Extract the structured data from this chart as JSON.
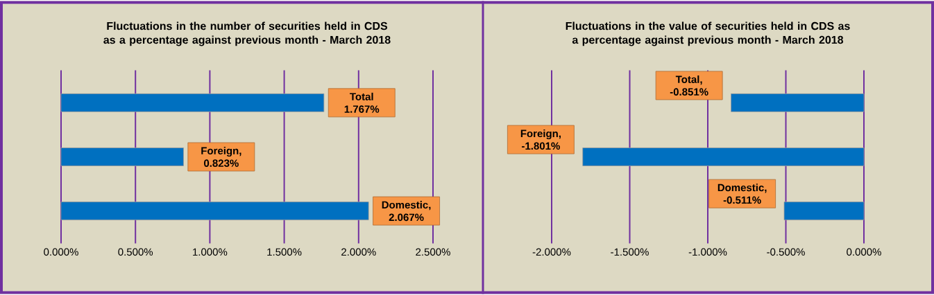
{
  "chart_data": [
    {
      "type": "bar",
      "orientation": "horizontal",
      "title": "Fluctuations in the number of securities held in CDS as a percentage against previous month - March 2018",
      "categories": [
        null,
        null,
        null
      ],
      "values": [
        1.767,
        0.823,
        2.067
      ],
      "value_labels": [
        "Total 1.767%",
        "Foreign, 0.823%",
        "Domestic, 2.067%"
      ],
      "color": "#0070c0",
      "xlim": [
        0,
        2.5
      ],
      "xticks": [
        {
          "value": 0,
          "label": "0.000%"
        },
        {
          "value": 0.5,
          "label": "0.500%"
        },
        {
          "value": 1,
          "label": "1.000%"
        },
        {
          "value": 1.5,
          "label": "1.500%"
        },
        {
          "value": 2,
          "label": "2.000%"
        },
        {
          "value": 2.5,
          "label": "2.500%"
        }
      ],
      "grid": "x",
      "tick_labels": "x"
    },
    {
      "type": "bar",
      "orientation": "horizontal",
      "title": "Fluctuations in the value of securities held in CDS as a percentage against previous month - March 2018",
      "categories": [
        null,
        null,
        null
      ],
      "values": [
        -0.851,
        -1.801,
        -0.511
      ],
      "value_labels": [
        "Total, -0.851%",
        "Foreign, -1.801%",
        "Domestic, -0.511%"
      ],
      "color": "#0070c0",
      "xlim": [
        -2,
        0
      ],
      "xticks": [
        {
          "value": -2,
          "label": "-2.000%"
        },
        {
          "value": -1.5,
          "label": "-1.500%"
        },
        {
          "value": -1,
          "label": "-1.000%"
        },
        {
          "value": -0.5,
          "label": "-0.500%"
        },
        {
          "value": 0,
          "label": "0.000%"
        }
      ],
      "grid": "x",
      "tick_labels": "x"
    }
  ]
}
